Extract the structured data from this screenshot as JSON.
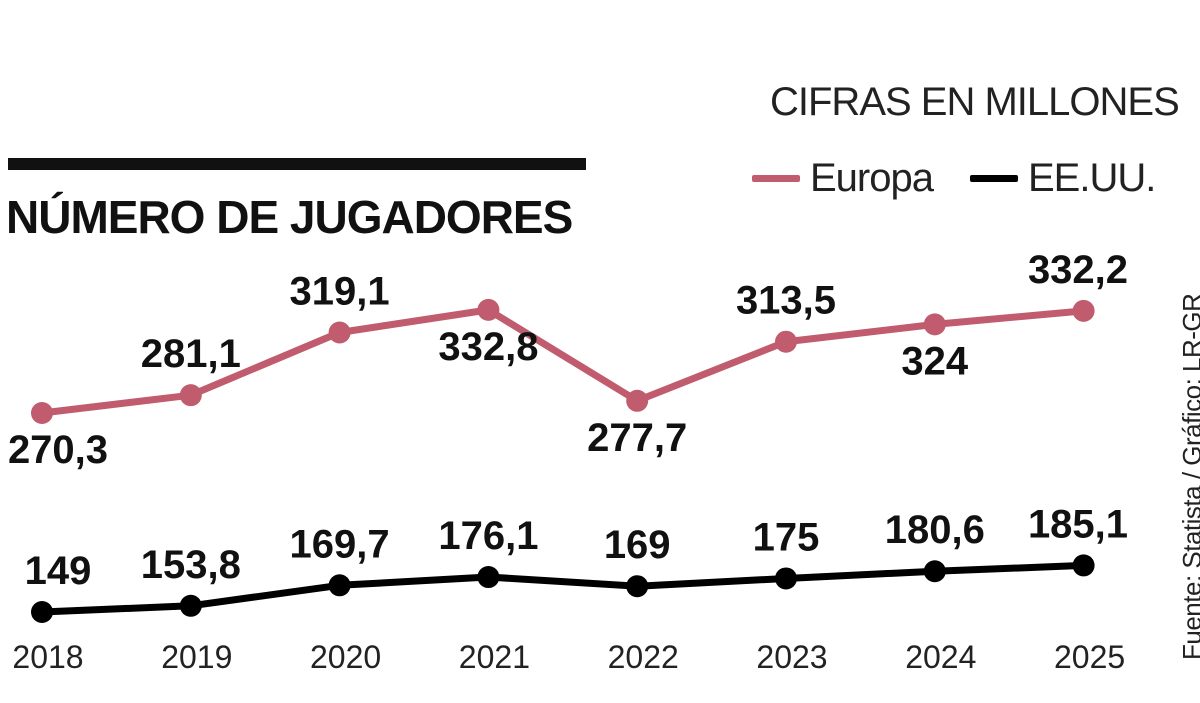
{
  "colors": {
    "europa": "#c05c6e",
    "eeuu": "#000000"
  },
  "chart_data": {
    "type": "line",
    "title": "NÚMERO DE JUGADORES",
    "units": "CIFRAS EN MILLONES",
    "source": "Fuente: Statista / Gráfico: LR-GR",
    "categories": [
      "2018",
      "2019",
      "2020",
      "2021",
      "2022",
      "2023",
      "2024",
      "2025"
    ],
    "series": [
      {
        "name": "Europa",
        "values": [
          270.3,
          281.1,
          319.1,
          332.8,
          277.7,
          313.5,
          324,
          332.2
        ],
        "labels": [
          "270,3",
          "281,1",
          "319,1",
          "332,8",
          "277,7",
          "313,5",
          "324",
          "332,2"
        ]
      },
      {
        "name": "EE.UU.",
        "values": [
          149,
          153.8,
          169.7,
          176.1,
          169,
          175,
          180.6,
          185.1
        ],
        "labels": [
          "149",
          "153,8",
          "169,7",
          "176,1",
          "169",
          "175",
          "180,6",
          "185,1"
        ]
      }
    ],
    "legend": "top-right",
    "grid": false
  }
}
